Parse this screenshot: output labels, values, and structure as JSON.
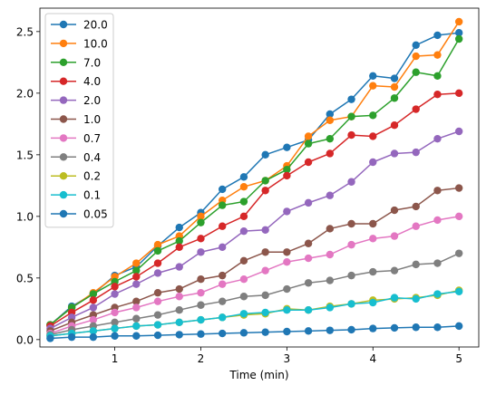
{
  "chart_data": {
    "type": "line",
    "title": "",
    "xlabel": "Time (min)",
    "ylabel": "",
    "xlim": [
      0.13,
      5.23
    ],
    "ylim": [
      -0.06,
      2.69
    ],
    "xticks": [
      1,
      2,
      3,
      4,
      5
    ],
    "xtick_labels": [
      "1",
      "2",
      "3",
      "4",
      "5"
    ],
    "yticks": [
      0.0,
      0.5,
      1.0,
      1.5,
      2.0,
      2.5
    ],
    "ytick_labels": [
      "0.0",
      "0.5",
      "1.0",
      "1.5",
      "2.0",
      "2.5"
    ],
    "grid": false,
    "legend_position": "upper-left",
    "marker": "circle",
    "x": [
      0.25,
      0.5,
      0.75,
      1.0,
      1.25,
      1.5,
      1.75,
      2.0,
      2.25,
      2.5,
      2.75,
      3.0,
      3.25,
      3.5,
      3.75,
      4.0,
      4.25,
      4.5,
      4.75,
      5.0
    ],
    "series": [
      {
        "name": "20.0",
        "color": "#1f77b4",
        "values": [
          0.12,
          0.27,
          0.37,
          0.52,
          0.59,
          0.76,
          0.91,
          1.03,
          1.22,
          1.32,
          1.5,
          1.56,
          1.62,
          1.83,
          1.95,
          2.14,
          2.12,
          2.39,
          2.47,
          2.49
        ]
      },
      {
        "name": "10.0",
        "color": "#ff7f0e",
        "values": [
          0.12,
          0.26,
          0.38,
          0.51,
          0.62,
          0.77,
          0.84,
          1.0,
          1.13,
          1.24,
          1.29,
          1.41,
          1.65,
          1.78,
          1.81,
          2.06,
          2.05,
          2.3,
          2.31,
          2.58
        ]
      },
      {
        "name": "7.0",
        "color": "#2ca02c",
        "values": [
          0.12,
          0.26,
          0.37,
          0.47,
          0.56,
          0.72,
          0.8,
          0.95,
          1.09,
          1.12,
          1.29,
          1.38,
          1.59,
          1.63,
          1.81,
          1.82,
          1.96,
          2.17,
          2.14,
          2.44
        ]
      },
      {
        "name": "4.0",
        "color": "#d62728",
        "values": [
          0.11,
          0.22,
          0.32,
          0.43,
          0.51,
          0.62,
          0.75,
          0.82,
          0.92,
          1.0,
          1.21,
          1.33,
          1.44,
          1.51,
          1.66,
          1.65,
          1.74,
          1.87,
          1.99,
          2.0
        ]
      },
      {
        "name": "2.0",
        "color": "#9467bd",
        "values": [
          0.09,
          0.18,
          0.26,
          0.37,
          0.45,
          0.54,
          0.59,
          0.71,
          0.75,
          0.88,
          0.89,
          1.04,
          1.11,
          1.17,
          1.28,
          1.44,
          1.51,
          1.52,
          1.63,
          1.69
        ]
      },
      {
        "name": "1.0",
        "color": "#8c564b",
        "values": [
          0.07,
          0.14,
          0.2,
          0.26,
          0.31,
          0.38,
          0.41,
          0.49,
          0.52,
          0.64,
          0.71,
          0.71,
          0.78,
          0.9,
          0.94,
          0.94,
          1.05,
          1.08,
          1.21,
          1.23
        ]
      },
      {
        "name": "0.7",
        "color": "#e377c2",
        "values": [
          0.05,
          0.11,
          0.16,
          0.22,
          0.26,
          0.31,
          0.35,
          0.38,
          0.45,
          0.49,
          0.56,
          0.63,
          0.66,
          0.69,
          0.77,
          0.82,
          0.84,
          0.92,
          0.97,
          1.0
        ]
      },
      {
        "name": "0.4",
        "color": "#7f7f7f",
        "values": [
          0.04,
          0.08,
          0.11,
          0.14,
          0.17,
          0.2,
          0.24,
          0.28,
          0.31,
          0.35,
          0.36,
          0.41,
          0.46,
          0.48,
          0.52,
          0.55,
          0.56,
          0.61,
          0.62,
          0.7
        ]
      },
      {
        "name": "0.2",
        "color": "#bcbd22",
        "values": [
          0.03,
          0.05,
          0.07,
          0.09,
          0.11,
          0.12,
          0.14,
          0.16,
          0.18,
          0.2,
          0.21,
          0.25,
          0.24,
          0.27,
          0.29,
          0.32,
          0.33,
          0.34,
          0.36,
          0.4
        ]
      },
      {
        "name": "0.1",
        "color": "#17becf",
        "values": [
          0.03,
          0.05,
          0.07,
          0.09,
          0.11,
          0.12,
          0.14,
          0.16,
          0.18,
          0.21,
          0.22,
          0.24,
          0.24,
          0.26,
          0.29,
          0.3,
          0.34,
          0.33,
          0.37,
          0.39
        ]
      },
      {
        "name": "0.05",
        "color": "#1f77b4",
        "values": [
          0.01,
          0.02,
          0.02,
          0.03,
          0.03,
          0.035,
          0.04,
          0.045,
          0.05,
          0.055,
          0.06,
          0.065,
          0.07,
          0.075,
          0.08,
          0.09,
          0.095,
          0.1,
          0.1,
          0.11
        ]
      }
    ]
  }
}
